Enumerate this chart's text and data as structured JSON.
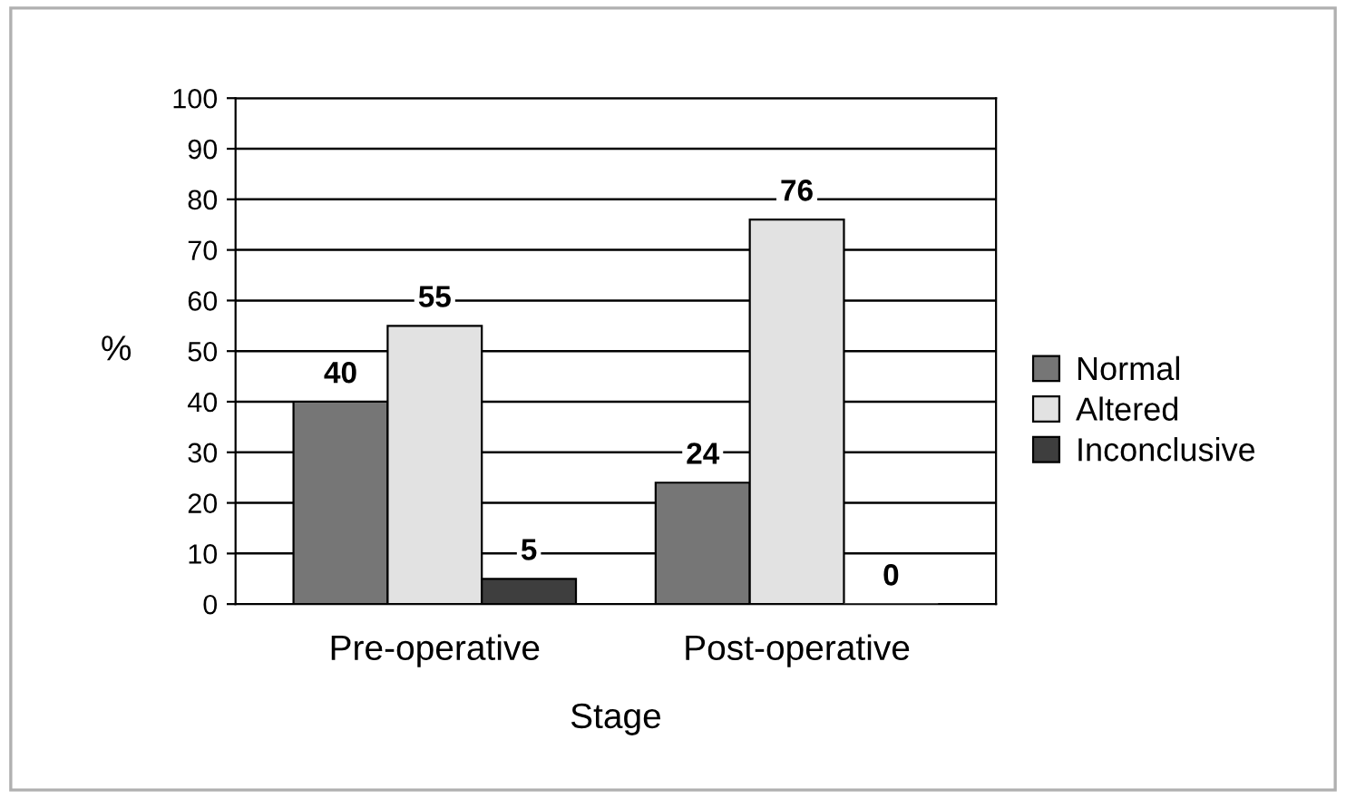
{
  "chart_data": {
    "type": "bar",
    "xlabel": "Stage",
    "ylabel": "%",
    "categories": [
      "Pre-operative",
      "Post-operative"
    ],
    "series": [
      {
        "name": "Normal",
        "color": "#767676",
        "values": [
          40,
          24
        ]
      },
      {
        "name": "Altered",
        "color": "#e2e2e2",
        "values": [
          55,
          76
        ]
      },
      {
        "name": "Inconclusive",
        "color": "#3e3e3e",
        "values": [
          5,
          0
        ]
      }
    ],
    "ylim": [
      0,
      100
    ],
    "yticks": [
      0,
      10,
      20,
      30,
      40,
      50,
      60,
      70,
      80,
      90,
      100
    ],
    "grid": "y",
    "legend": "right",
    "data_labels": true
  }
}
